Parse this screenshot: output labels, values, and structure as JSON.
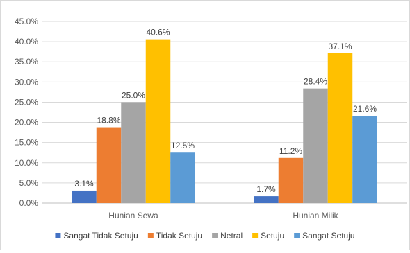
{
  "chart_data": {
    "type": "bar",
    "title": "",
    "xlabel": "",
    "ylabel": "",
    "categories": [
      "Hunian Sewa",
      "Hunian Milik"
    ],
    "series": [
      {
        "name": "Sangat Tidak Setuju",
        "values": [
          3.1,
          1.7
        ],
        "labels": [
          "3.1%",
          "1.7%"
        ],
        "color": "#4472C4"
      },
      {
        "name": "Tidak Setuju",
        "values": [
          18.8,
          11.2
        ],
        "labels": [
          "18.8%",
          "11.2%"
        ],
        "color": "#ED7D31"
      },
      {
        "name": "Netral",
        "values": [
          25.0,
          28.4
        ],
        "labels": [
          "25.0%",
          "28.4%"
        ],
        "color": "#A5A5A5"
      },
      {
        "name": "Setuju",
        "values": [
          40.6,
          37.1
        ],
        "labels": [
          "40.6%",
          "37.1%"
        ],
        "color": "#FFC000"
      },
      {
        "name": "Sangat Setuju",
        "values": [
          12.5,
          21.6
        ],
        "labels": [
          "12.5%",
          "21.6%"
        ],
        "color": "#5B9BD5"
      }
    ],
    "ylim": [
      0,
      45
    ],
    "y_ticks": [
      "0.0%",
      "5.0%",
      "10.0%",
      "15.0%",
      "20.0%",
      "25.0%",
      "30.0%",
      "35.0%",
      "40.0%",
      "45.0%"
    ],
    "grid": true,
    "legend_position": "bottom"
  }
}
